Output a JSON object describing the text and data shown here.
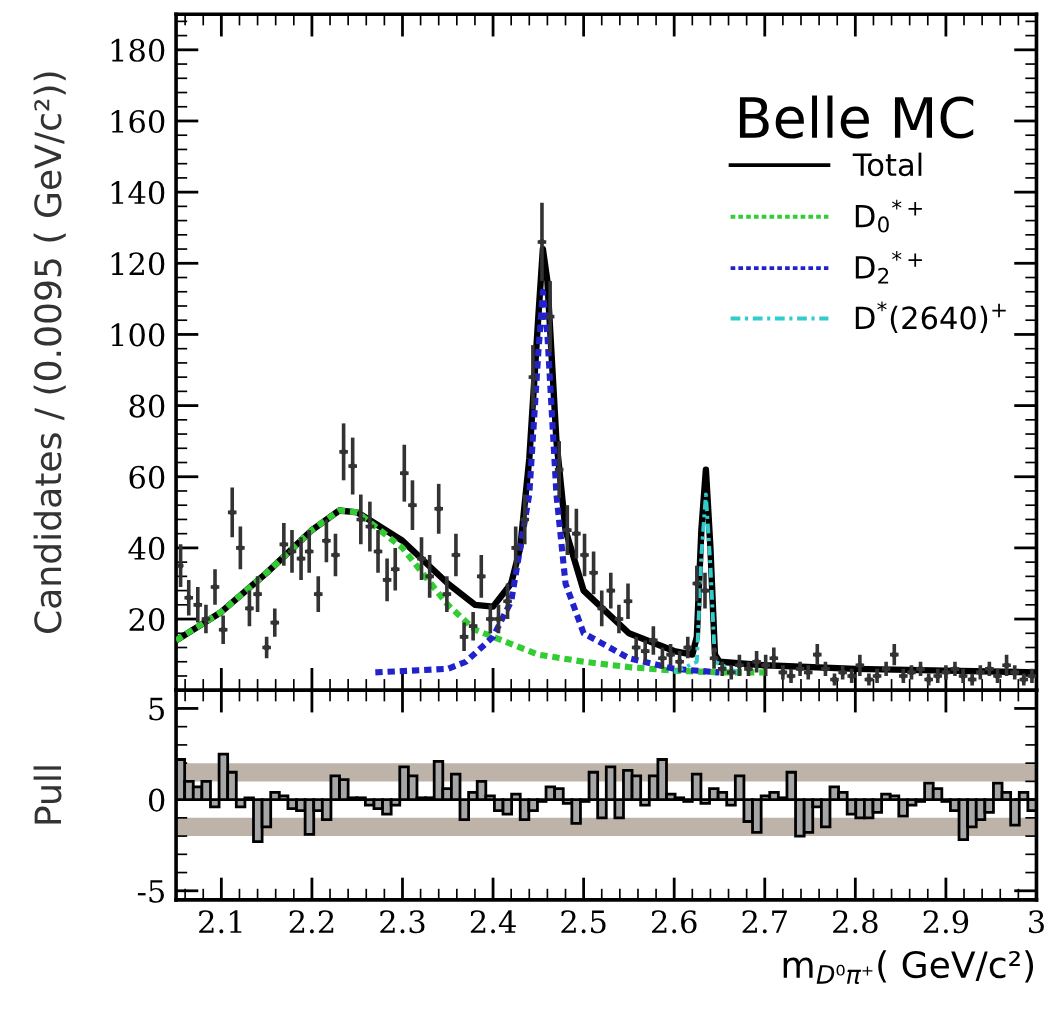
{
  "chart_data": [
    {
      "type": "scatter",
      "ylabel": "Candidates / (0.0095 ( GeV/c²))",
      "annotations": [
        "Belle MC"
      ],
      "legend": "right",
      "tick_labels": "y",
      "xlim": [
        2.05,
        3.0
      ],
      "xticks": [
        2.1,
        2.2,
        2.3,
        2.4,
        2.5,
        2.6,
        2.7,
        2.8,
        2.9,
        3
      ],
      "ylim": [
        0,
        190
      ],
      "yticks": [
        20,
        40,
        60,
        80,
        100,
        120,
        140,
        160,
        180
      ],
      "series": [
        {
          "type": "scatter",
          "color": "#333333",
          "marker": "circle",
          "x": [
            2.055,
            2.064,
            2.074,
            2.083,
            2.093,
            2.102,
            2.112,
            2.121,
            2.131,
            2.14,
            2.15,
            2.159,
            2.169,
            2.178,
            2.188,
            2.197,
            2.207,
            2.216,
            2.226,
            2.235,
            2.245,
            2.254,
            2.264,
            2.273,
            2.283,
            2.292,
            2.302,
            2.311,
            2.321,
            2.33,
            2.34,
            2.349,
            2.359,
            2.368,
            2.378,
            2.387,
            2.397,
            2.406,
            2.416,
            2.425,
            2.435,
            2.444,
            2.454,
            2.463,
            2.473,
            2.482,
            2.492,
            2.501,
            2.511,
            2.52,
            2.53,
            2.539,
            2.549,
            2.558,
            2.568,
            2.577,
            2.587,
            2.596,
            2.606,
            2.615,
            2.625,
            2.634,
            2.644,
            2.653,
            2.663,
            2.672,
            2.682,
            2.691,
            2.701,
            2.71,
            2.72,
            2.729,
            2.739,
            2.748,
            2.758,
            2.767,
            2.777,
            2.786,
            2.796,
            2.805,
            2.815,
            2.824,
            2.834,
            2.843,
            2.853,
            2.862,
            2.872,
            2.881,
            2.891,
            2.9,
            2.91,
            2.919,
            2.929,
            2.938,
            2.948,
            2.957,
            2.967,
            2.976,
            2.986,
            2.995
          ],
          "values": [
            35,
            26,
            24,
            20,
            29,
            17,
            50,
            40,
            23,
            27,
            12,
            19,
            41,
            39,
            37,
            39,
            27,
            42,
            38,
            67,
            63,
            48,
            46,
            39,
            31,
            34,
            61,
            52,
            37,
            32,
            51,
            27,
            38,
            15,
            18,
            32,
            20,
            20,
            25,
            40,
            48,
            88,
            126,
            105,
            62,
            45,
            44,
            38,
            33,
            23,
            28,
            20,
            25,
            12,
            11,
            14,
            9,
            10,
            8,
            12,
            30,
            28,
            9,
            6,
            5,
            7,
            6,
            8,
            7,
            9,
            5,
            4,
            6,
            5,
            10,
            6,
            3,
            5,
            4,
            7,
            3,
            4,
            6,
            10,
            4,
            5,
            6,
            3,
            4,
            5,
            6,
            4,
            3,
            5,
            6,
            4,
            7,
            5,
            3,
            4
          ],
          "errors": [
            6,
            5,
            5,
            4,
            5,
            4,
            7,
            6,
            5,
            5,
            3,
            4,
            6,
            6,
            6,
            6,
            5,
            6,
            6,
            8,
            8,
            7,
            7,
            6,
            6,
            6,
            8,
            7,
            6,
            6,
            7,
            5,
            6,
            4,
            4,
            6,
            4,
            4,
            5,
            6,
            7,
            9,
            11,
            10,
            8,
            7,
            7,
            6,
            6,
            5,
            5,
            4,
            5,
            3,
            3,
            4,
            3,
            3,
            3,
            3,
            5,
            5,
            3,
            2,
            2,
            3,
            2,
            3,
            3,
            3,
            2,
            2,
            2,
            2,
            3,
            2,
            1.7,
            2,
            2,
            3,
            1.7,
            2,
            2,
            3,
            2,
            2,
            2,
            1.7,
            2,
            2,
            2,
            2,
            1.7,
            2,
            2,
            2,
            3,
            2,
            1.7,
            2
          ],
          "xerrors": [
            null,
            0.00475,
            0.00475,
            0.00475,
            0.00475,
            0.00475,
            0.00475,
            0.00475,
            0.00475,
            0.00475,
            0.00475,
            0.00475,
            0.00475,
            0.00475,
            0.00475,
            0.00475,
            0.00475,
            0.00475,
            0.00475,
            0.00475,
            0.00475,
            0.00475,
            0.00475,
            0.00475,
            0.00475,
            0.00475,
            0.00475,
            0.00475,
            0.00475,
            0.00475,
            0.00475,
            0.00475,
            0.00475,
            0.00475,
            0.00475,
            0.00475,
            0.00475,
            0.00475,
            0.00475,
            0.00475,
            0.00475,
            0.00475,
            0.00475,
            0.00475,
            0.00475,
            0.00475,
            0.00475,
            0.00475,
            0.00475,
            0.00475,
            0.00475,
            0.00475,
            0.00475,
            0.00475,
            0.00475,
            0.00475,
            0.00475,
            0.00475,
            0.00475,
            0.00475,
            0.00475,
            0.00475,
            0.00475,
            0.00475,
            0.00475,
            0.00475,
            0.00475,
            0.00475,
            0.00475,
            0.00475,
            0.00475,
            0.00475,
            0.00475,
            0.00475,
            0.00475,
            0.00475,
            0.00475,
            0.00475,
            0.00475,
            0.00475,
            0.00475,
            0.00475,
            0.00475,
            0.00475,
            0.00475,
            0.00475,
            0.00475,
            0.00475,
            0.00475,
            0.00475,
            0.00475,
            0.00475,
            0.00475,
            0.00475,
            0.00475,
            0.00475,
            0.00475,
            0.00475,
            0.00475,
            0.00475
          ]
        },
        {
          "type": "line",
          "name": "Total",
          "color": "#000000",
          "line_style": "solid",
          "x": [
            2.05,
            2.1,
            2.15,
            2.2,
            2.23,
            2.25,
            2.3,
            2.35,
            2.38,
            2.4,
            2.42,
            2.43,
            2.44,
            2.45,
            2.455,
            2.46,
            2.47,
            2.48,
            2.5,
            2.55,
            2.6,
            2.62,
            2.625,
            2.63,
            2.635,
            2.64,
            2.645,
            2.65,
            2.7,
            2.8,
            2.9,
            3.0
          ],
          "values": [
            14,
            22,
            33,
            45,
            50.5,
            50,
            42,
            30,
            24,
            23.5,
            30,
            40,
            65,
            105,
            124,
            115,
            70,
            45,
            28,
            16,
            11,
            10,
            15,
            45,
            62,
            40,
            10,
            8,
            7,
            6,
            5.5,
            5
          ]
        },
        {
          "type": "line",
          "name": "D$_{0}$$^{*+}$",
          "color": "#33cc33",
          "line_style": "dotted",
          "x": [
            2.05,
            2.1,
            2.15,
            2.2,
            2.23,
            2.25,
            2.3,
            2.35,
            2.38,
            2.4,
            2.45,
            2.5,
            2.55,
            2.6,
            2.65,
            2.7
          ],
          "values": [
            14,
            22,
            33,
            45,
            50.5,
            50,
            40,
            24,
            17,
            15,
            10,
            8,
            6.5,
            5.5,
            5,
            5
          ]
        },
        {
          "type": "line",
          "name": "D$_{2}$$^{*+}$",
          "color": "#2222cc",
          "line_style": "dotted",
          "x": [
            2.27,
            2.35,
            2.37,
            2.4,
            2.42,
            2.44,
            2.45,
            2.455,
            2.46,
            2.47,
            2.48,
            2.5,
            2.55,
            2.6,
            2.65
          ],
          "values": [
            5,
            6,
            8,
            15,
            25,
            55,
            95,
            112,
            100,
            55,
            30,
            16,
            9,
            6,
            5
          ]
        },
        {
          "type": "line",
          "name": "D$^{*}$(2640)$^{+}$",
          "color": "#33cccc",
          "line_style": "dashed",
          "x": [
            2.6,
            2.625,
            2.63,
            2.635,
            2.64,
            2.645,
            2.67
          ],
          "values": [
            5,
            8,
            38,
            55,
            35,
            8,
            5
          ]
        }
      ]
    },
    {
      "type": "histogram",
      "ylabel": "Pull",
      "xlabel": "m$_{D⁰π⁺}$( GeV/c²)",
      "color": "#a6a6a6",
      "xlim": [
        2.05,
        3.0
      ],
      "xticks": [
        2.1,
        2.2,
        2.3,
        2.4,
        2.5,
        2.6,
        2.7,
        2.8,
        2.9,
        3
      ],
      "ylim": [
        -5.5,
        6
      ],
      "yticks": [
        5,
        0,
        {
          "value": -5,
          "label": "-5"
        }
      ],
      "bands": [
        {
          "axis": "y",
          "from": 1,
          "to": 2,
          "color": "#bdb3a8"
        },
        {
          "axis": "y",
          "from": -2,
          "to": -1,
          "color": "#bdb3a8"
        }
      ],
      "bins": [
        2.05,
        2.0595,
        2.069,
        2.0785,
        2.088,
        2.0975,
        2.107,
        2.1165,
        2.126,
        2.1355,
        2.145,
        2.1545,
        2.164,
        2.1735,
        2.183,
        2.1925,
        2.202,
        2.2115,
        2.221,
        2.2305,
        2.24,
        2.2495,
        2.259,
        2.2685,
        2.278,
        2.2875,
        2.297,
        2.3065,
        2.316,
        2.3255,
        2.335,
        2.3445,
        2.354,
        2.3635,
        2.373,
        2.3825,
        2.392,
        2.4015,
        2.411,
        2.4205,
        2.43,
        2.4395,
        2.449,
        2.4585,
        2.468,
        2.4775,
        2.487,
        2.4965,
        2.506,
        2.5155,
        2.525,
        2.5345,
        2.544,
        2.5535,
        2.563,
        2.5725,
        2.582,
        2.5915,
        2.601,
        2.6105,
        2.62,
        2.6295,
        2.639,
        2.6485,
        2.658,
        2.6675,
        2.677,
        2.6865,
        2.696,
        2.7055,
        2.715,
        2.7245,
        2.734,
        2.7435,
        2.753,
        2.7625,
        2.772,
        2.7815,
        2.791,
        2.8005,
        2.81,
        2.8195,
        2.829,
        2.8385,
        2.848,
        2.8575,
        2.867,
        2.8765,
        2.886,
        2.8955,
        2.905,
        2.9145,
        2.924,
        2.9335,
        2.943,
        2.9525,
        2.962,
        2.9715,
        2.981,
        2.9905,
        3.0
      ],
      "values": [
        2.2,
        1.0,
        0.7,
        1.0,
        -0.4,
        2.5,
        1.5,
        -0.4,
        0.1,
        -2.3,
        -1.5,
        0.4,
        0.2,
        -0.5,
        -0.6,
        -1.9,
        -0.6,
        -1.1,
        1.3,
        1.1,
        0.1,
        0.1,
        -0.3,
        -0.5,
        -0.8,
        -0.3,
        1.8,
        1.3,
        0.1,
        0.1,
        2.1,
        0.6,
        1.4,
        -1.1,
        0.4,
        1.0,
        0.2,
        -0.6,
        -0.8,
        0.3,
        -1.1,
        -0.6,
        -0.1,
        0.7,
        0.6,
        -0.2,
        -1.3,
        -0.1,
        1.5,
        -1.0,
        1.8,
        -1.0,
        1.6,
        1.3,
        -0.3,
        1.3,
        2.2,
        0.3,
        0.1,
        -0.1,
        1.4,
        -0.2,
        0.6,
        0.4,
        -0.3,
        1.3,
        -1.2,
        -1.8,
        0.2,
        0.4,
        0.1,
        1.5,
        -2.0,
        -1.8,
        -0.4,
        -1.5,
        0.7,
        0.4,
        -0.8,
        -1.0,
        -1.0,
        -0.7,
        0.3,
        0.2,
        -0.9,
        -0.3,
        -0.1,
        0.9,
        0.6,
        -0.1,
        -0.6,
        -2.2,
        -1.5,
        -1.1,
        -0.7,
        0.9,
        0.4,
        -1.4,
        0.4,
        -0.6
      ]
    }
  ]
}
